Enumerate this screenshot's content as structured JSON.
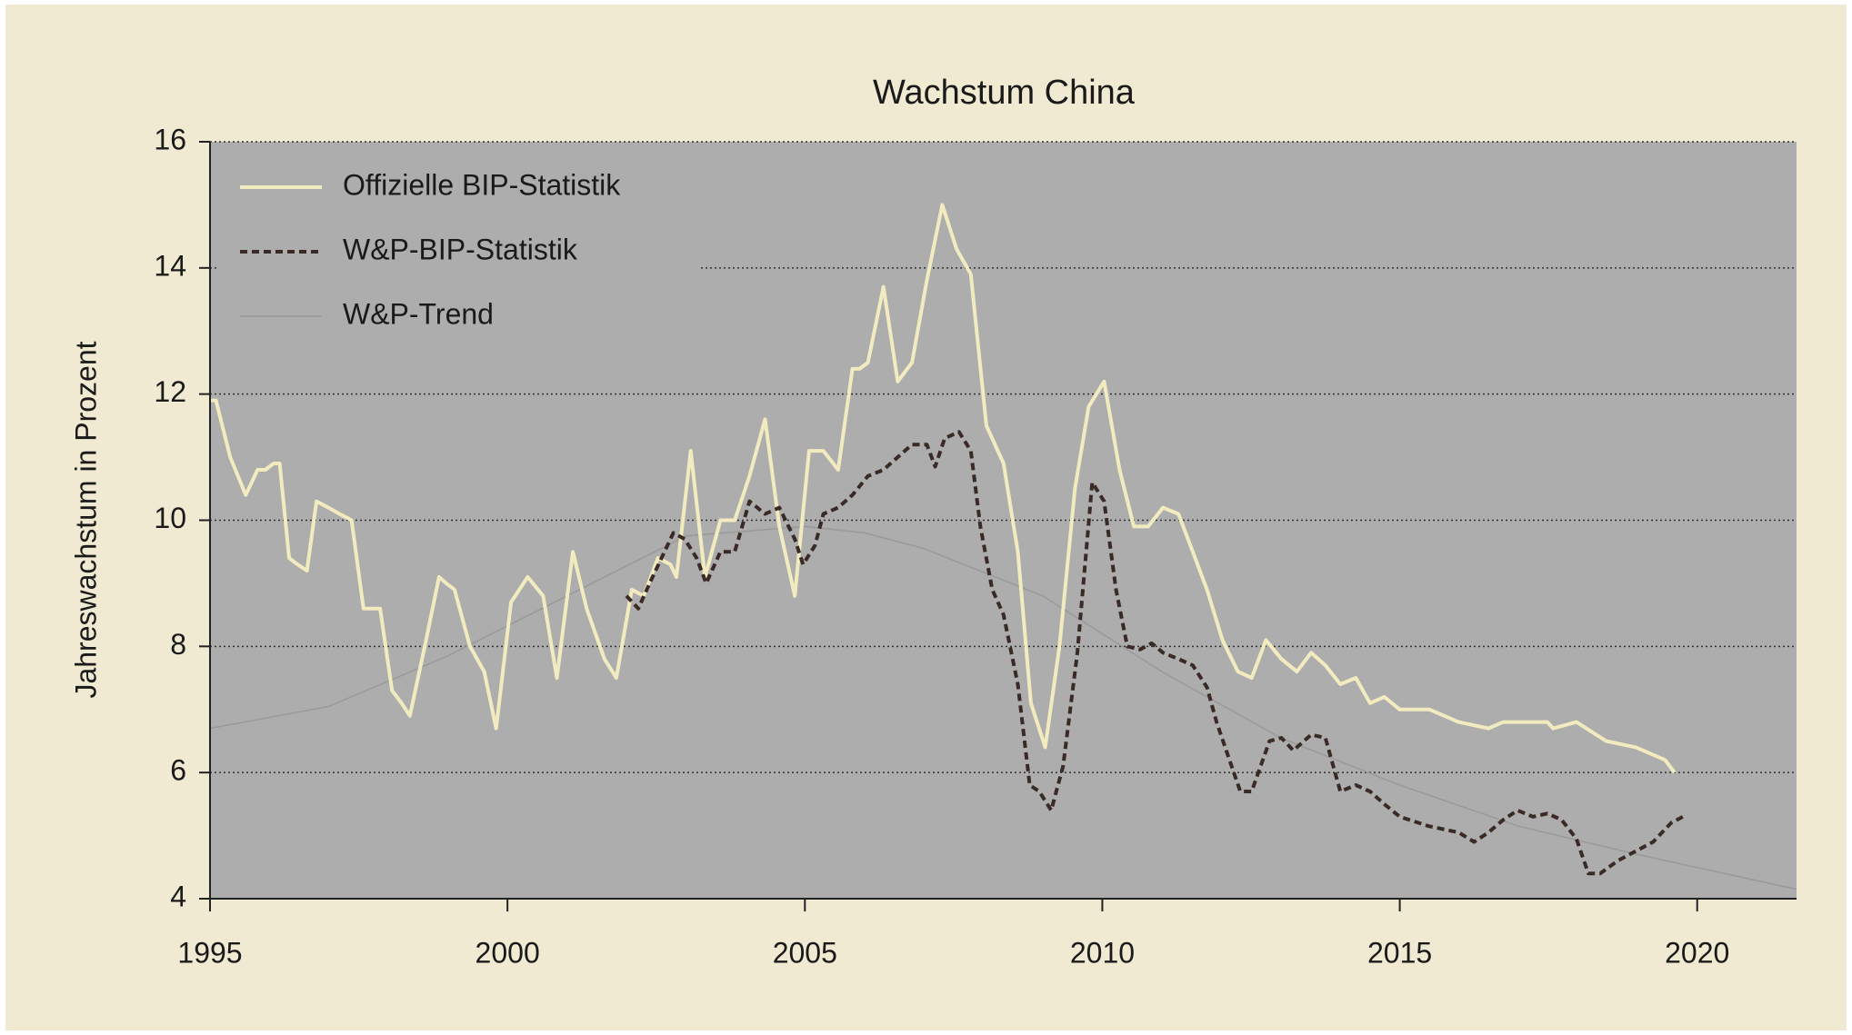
{
  "chart_data": {
    "type": "line",
    "title": "Wachstum China",
    "y_label": "Jahreswachstum in Prozent",
    "xlim": [
      1995,
      2021.67
    ],
    "xticks": [
      1995,
      2000,
      2005,
      2010,
      2015,
      2020
    ],
    "ylim": [
      4,
      16
    ],
    "yticks": [
      4,
      6,
      8,
      10,
      12,
      14,
      16
    ],
    "grid": true,
    "legend": "top-left",
    "series": [
      {
        "name": "Offizielle BIP-Statistik",
        "color": "#f3ebc0",
        "dash": false,
        "x": [
          1995.0,
          1995.1,
          1995.34,
          1995.6,
          1995.8,
          1995.93,
          1996.07,
          1996.17,
          1996.33,
          1996.47,
          1996.63,
          1996.79,
          1996.99,
          1997.18,
          1997.38,
          1997.58,
          1997.86,
          1998.06,
          1998.22,
          1998.36,
          1998.61,
          1998.85,
          1998.97,
          1999.11,
          1999.37,
          1999.61,
          1999.81,
          2000.06,
          2000.2,
          2000.34,
          2000.6,
          2000.83,
          2001.1,
          2001.33,
          2001.63,
          2001.83,
          2002.09,
          2002.29,
          2002.53,
          2002.74,
          2002.84,
          2003.08,
          2003.32,
          2003.58,
          2003.82,
          2004.07,
          2004.33,
          2004.57,
          2004.83,
          2005.07,
          2005.31,
          2005.56,
          2005.8,
          2005.92,
          2006.06,
          2006.32,
          2006.56,
          2006.8,
          2007.05,
          2007.31,
          2007.55,
          2007.79,
          2008.05,
          2008.34,
          2008.58,
          2008.8,
          2009.04,
          2009.28,
          2009.54,
          2009.77,
          2010.03,
          2010.29,
          2010.53,
          2010.77,
          2011.02,
          2011.28,
          2011.52,
          2011.76,
          2012.02,
          2012.28,
          2012.51,
          2012.75,
          2013.01,
          2013.27,
          2013.51,
          2013.75,
          2014.0,
          2014.26,
          2014.5,
          2014.74,
          2015.0,
          2015.5,
          2015.99,
          2016.49,
          2016.74,
          2017.48,
          2017.58,
          2017.97,
          2018.47,
          2018.97,
          2019.46,
          2019.62
        ],
        "values": [
          11.9,
          11.9,
          11.0,
          10.4,
          10.8,
          10.8,
          10.9,
          10.9,
          9.4,
          9.3,
          9.2,
          10.3,
          10.2,
          10.1,
          10.0,
          8.6,
          8.6,
          7.3,
          7.1,
          6.9,
          8.0,
          9.1,
          9.0,
          8.9,
          8.0,
          7.6,
          6.7,
          8.7,
          8.9,
          9.1,
          8.8,
          7.5,
          9.5,
          8.6,
          7.8,
          7.5,
          8.9,
          8.8,
          9.4,
          9.3,
          9.1,
          11.1,
          9.1,
          10.0,
          10.0,
          10.7,
          11.6,
          9.9,
          8.8,
          11.1,
          11.1,
          10.8,
          12.4,
          12.4,
          12.5,
          13.7,
          12.2,
          12.5,
          13.8,
          15.0,
          14.3,
          13.9,
          11.5,
          10.9,
          9.5,
          7.1,
          6.4,
          8.0,
          10.5,
          11.8,
          12.2,
          10.8,
          9.9,
          9.9,
          10.2,
          10.1,
          9.5,
          8.9,
          8.1,
          7.6,
          7.5,
          8.1,
          7.8,
          7.6,
          7.9,
          7.7,
          7.4,
          7.5,
          7.1,
          7.2,
          7.0,
          7.0,
          6.8,
          6.7,
          6.8,
          6.8,
          6.7,
          6.8,
          6.5,
          6.4,
          6.2,
          6.0
        ]
      },
      {
        "name": "W&P-BIP-Statistik",
        "color": "#3a2a26",
        "dash": true,
        "x": [
          2002.0,
          2002.2,
          2002.39,
          2002.59,
          2002.79,
          2002.98,
          2003.18,
          2003.34,
          2003.58,
          2003.82,
          2004.07,
          2004.33,
          2004.57,
          2004.83,
          2004.97,
          2005.17,
          2005.31,
          2005.56,
          2005.8,
          2006.06,
          2006.32,
          2006.56,
          2006.8,
          2007.05,
          2007.19,
          2007.35,
          2007.59,
          2007.79,
          2007.95,
          2008.15,
          2008.34,
          2008.58,
          2008.78,
          2008.94,
          2009.14,
          2009.34,
          2009.58,
          2009.83,
          2010.03,
          2010.23,
          2010.42,
          2010.63,
          2010.83,
          2011.02,
          2011.28,
          2011.52,
          2011.76,
          2011.92,
          2012.12,
          2012.32,
          2012.51,
          2012.81,
          2013.01,
          2013.21,
          2013.51,
          2013.75,
          2014.0,
          2014.26,
          2014.5,
          2014.74,
          2015.0,
          2015.49,
          2015.99,
          2016.25,
          2016.49,
          2016.74,
          2016.98,
          2017.24,
          2017.48,
          2017.72,
          2017.97,
          2018.17,
          2018.37,
          2018.66,
          2018.96,
          2019.26,
          2019.56,
          2019.76
        ],
        "values": [
          8.8,
          8.6,
          9.0,
          9.4,
          9.8,
          9.7,
          9.4,
          9.0,
          9.5,
          9.5,
          10.3,
          10.1,
          10.2,
          9.7,
          9.3,
          9.6,
          10.1,
          10.2,
          10.4,
          10.7,
          10.8,
          11.0,
          11.2,
          11.2,
          10.85,
          11.3,
          11.4,
          11.1,
          9.9,
          8.9,
          8.5,
          7.4,
          5.8,
          5.7,
          5.4,
          6.1,
          7.9,
          10.6,
          10.3,
          8.9,
          8.0,
          7.95,
          8.05,
          7.9,
          7.8,
          7.7,
          7.35,
          6.8,
          6.25,
          5.7,
          5.7,
          6.5,
          6.55,
          6.35,
          6.6,
          6.55,
          5.7,
          5.8,
          5.7,
          5.5,
          5.3,
          5.15,
          5.05,
          4.9,
          5.05,
          5.25,
          5.4,
          5.3,
          5.35,
          5.25,
          4.95,
          4.4,
          4.4,
          4.6,
          4.75,
          4.9,
          5.2,
          5.3
        ]
      },
      {
        "name": "W&P-Trend",
        "color": "#999999",
        "dash": false,
        "x": [
          1995,
          1997,
          1999,
          2001,
          2003,
          2005,
          2006,
          2007,
          2009,
          2011,
          2013,
          2015,
          2017,
          2019,
          2021.67
        ],
        "values": [
          6.7,
          7.05,
          7.85,
          8.8,
          9.75,
          9.9,
          9.8,
          9.55,
          8.8,
          7.6,
          6.55,
          5.8,
          5.15,
          4.7,
          4.15
        ]
      }
    ]
  }
}
